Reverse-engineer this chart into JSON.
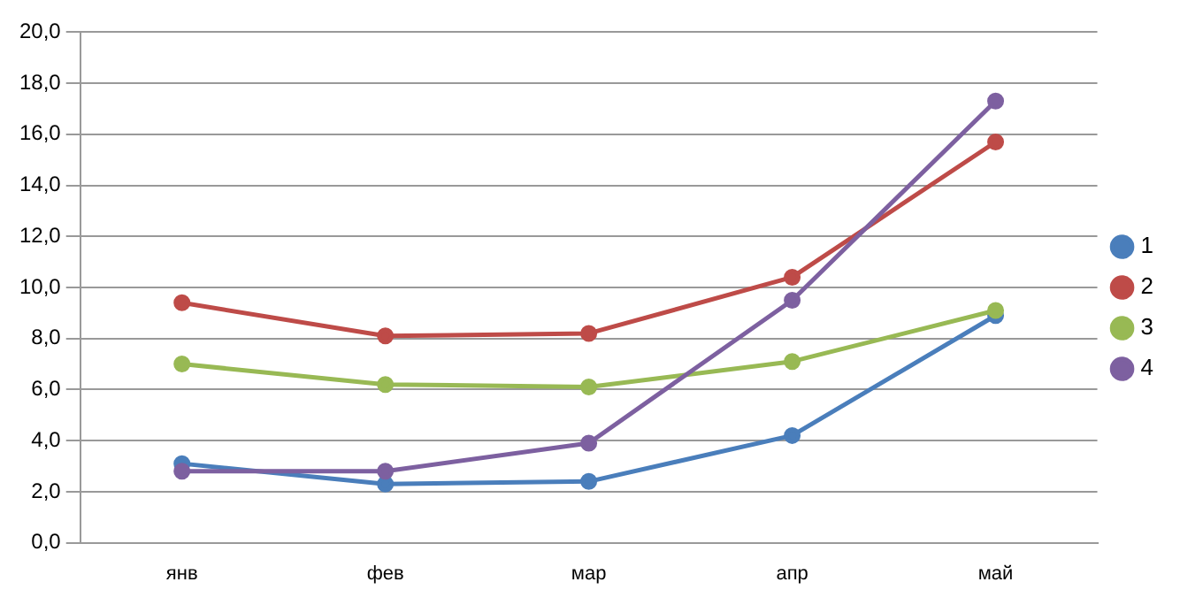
{
  "chart_data": {
    "type": "line",
    "categories": [
      "янв",
      "фев",
      "мар",
      "апр",
      "май"
    ],
    "series": [
      {
        "name": "1",
        "color": "#4a7ebb",
        "values": [
          3.1,
          2.3,
          2.4,
          4.2,
          8.9
        ]
      },
      {
        "name": "2",
        "color": "#be4b48",
        "values": [
          9.4,
          8.1,
          8.2,
          10.4,
          15.7
        ]
      },
      {
        "name": "3",
        "color": "#98b954",
        "values": [
          7.0,
          6.2,
          6.1,
          7.1,
          9.1
        ]
      },
      {
        "name": "4",
        "color": "#7d60a0",
        "values": [
          2.8,
          2.8,
          3.9,
          9.5,
          17.3
        ]
      }
    ],
    "ylim": [
      0,
      20
    ],
    "yticks": [
      {
        "value": 0,
        "label": "0,0"
      },
      {
        "value": 2,
        "label": "2,0"
      },
      {
        "value": 4,
        "label": "4,0"
      },
      {
        "value": 6,
        "label": "6,0"
      },
      {
        "value": 8,
        "label": "8,0"
      },
      {
        "value": 10,
        "label": "10,0"
      },
      {
        "value": 12,
        "label": "12,0"
      },
      {
        "value": 14,
        "label": "14,0"
      },
      {
        "value": 16,
        "label": "16,0"
      },
      {
        "value": 18,
        "label": "18,0"
      },
      {
        "value": 20,
        "label": "20,0"
      }
    ],
    "grid": "y",
    "legend": "right",
    "marker": "circle",
    "line_style": "solid"
  }
}
